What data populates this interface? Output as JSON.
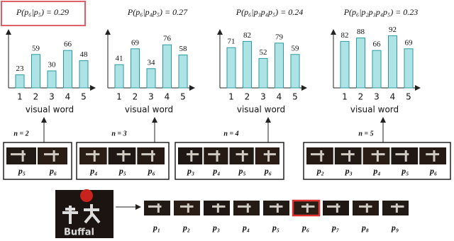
{
  "chart_data": [
    {
      "type": "bar",
      "title": "P(p₆|p₅) = 0.29",
      "categories": [
        "1",
        "2",
        "3",
        "4",
        "5"
      ],
      "values": [
        23,
        59,
        30,
        66,
        48
      ],
      "xlabel": "visual word",
      "color": "#aee3e6",
      "ylim": [
        0,
        100
      ]
    },
    {
      "type": "bar",
      "title": "P(p₆|p₄p₅) = 0.27",
      "categories": [
        "1",
        "2",
        "3",
        "4",
        "5"
      ],
      "values": [
        41,
        69,
        34,
        76,
        58
      ],
      "xlabel": "visual word",
      "color": "#aee3e6",
      "ylim": [
        0,
        100
      ]
    },
    {
      "type": "bar",
      "title": "P(p₆|p₃p₄p₅) = 0.24",
      "categories": [
        "1",
        "2",
        "3",
        "4",
        "5"
      ],
      "values": [
        71,
        82,
        52,
        79,
        59
      ],
      "xlabel": "visual word",
      "color": "#aee3e6",
      "ylim": [
        0,
        100
      ]
    },
    {
      "type": "bar",
      "title": "P(p₆|p₂p₃p₄p₅) = 0.23",
      "categories": [
        "1",
        "2",
        "3",
        "4",
        "5"
      ],
      "values": [
        82,
        88,
        66,
        92,
        69
      ],
      "xlabel": "visual word",
      "color": "#aee3e6",
      "ylim": [
        0,
        100
      ]
    }
  ],
  "panels": [
    {
      "n_label": "n = 2",
      "patches": [
        "p₅",
        "p₆"
      ]
    },
    {
      "n_label": "n = 3",
      "patches": [
        "p₄",
        "p₅",
        "p₆"
      ]
    },
    {
      "n_label": "n = 4",
      "patches": [
        "p₃",
        "p₄",
        "p₅",
        "p₆"
      ]
    },
    {
      "n_label": "n = 5",
      "patches": [
        "p₂",
        "p₃",
        "p₄",
        "p₅",
        "p₆"
      ]
    }
  ],
  "sequence": {
    "patches": [
      "p₁",
      "p₂",
      "p₃",
      "p₄",
      "p₅",
      "p₆",
      "p₇",
      "p₈",
      "p₉"
    ]
  }
}
